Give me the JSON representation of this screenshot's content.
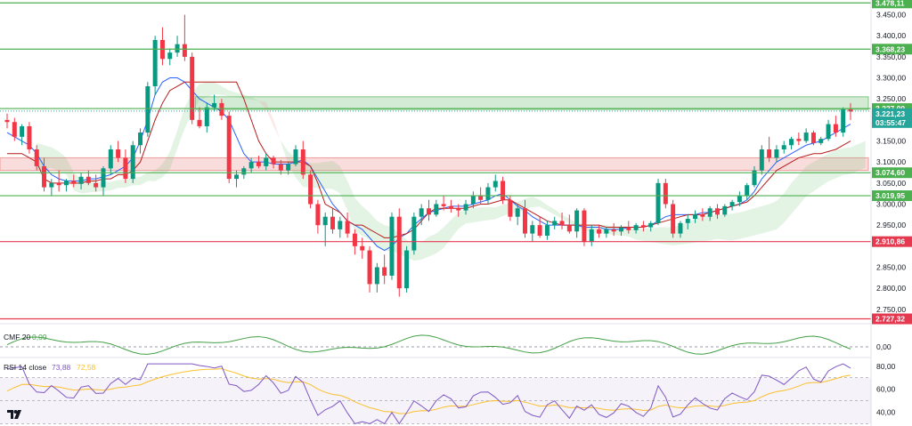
{
  "chart_data": {
    "type": "candlestick",
    "instrument": "ETH",
    "price_axis": {
      "ticks": [
        "3.450,00",
        "3.400,00",
        "3.350,00",
        "3.300,00",
        "3.250,00",
        "3.150,00",
        "3.100,00",
        "3.050,00",
        "3.000,00",
        "2.950,00",
        "2.850,00",
        "2.800,00",
        "2.750,00"
      ],
      "tick_values": [
        3450,
        3400,
        3350,
        3300,
        3250,
        3150,
        3100,
        3050,
        3000,
        2950,
        2850,
        2800,
        2750
      ],
      "range": [
        2720,
        3485
      ]
    },
    "levels": [
      {
        "label": "3.478,11",
        "value": 3478.11,
        "color": "#4caf50"
      },
      {
        "label": "3.368,23",
        "value": 3368.23,
        "color": "#4caf50"
      },
      {
        "label": "3.227,00",
        "value": 3227.0,
        "color": "#4caf50"
      },
      {
        "label": "3.074,60",
        "value": 3074.6,
        "color": "#4caf50"
      },
      {
        "label": "3.019,95",
        "value": 3019.95,
        "color": "#4caf50"
      },
      {
        "label": "2.910,86",
        "value": 2910.86,
        "color": "#e53950"
      },
      {
        "label": "2.727,32",
        "value": 2727.32,
        "color": "#e53950"
      }
    ],
    "current_price": {
      "label": "3.221,23",
      "countdown": "03:55:47",
      "value": 3221.23,
      "color": "#26a69a"
    },
    "zones": [
      {
        "from": 3225,
        "to": 3255,
        "color": "#81c784",
        "start_fraction": 0.225
      },
      {
        "from": 3080,
        "to": 3110,
        "color": "#ef9a9a",
        "start_fraction": 0
      }
    ],
    "candles": [
      [
        3200,
        3215,
        3180,
        3195
      ],
      [
        3195,
        3205,
        3150,
        3160
      ],
      [
        3160,
        3190,
        3140,
        3185
      ],
      [
        3185,
        3195,
        3120,
        3130
      ],
      [
        3130,
        3140,
        3080,
        3090
      ],
      [
        3090,
        3110,
        3030,
        3040
      ],
      [
        3040,
        3060,
        3020,
        3050
      ],
      [
        3050,
        3080,
        3030,
        3045
      ],
      [
        3045,
        3060,
        3030,
        3055
      ],
      [
        3055,
        3070,
        3040,
        3048
      ],
      [
        3048,
        3075,
        3035,
        3065
      ],
      [
        3065,
        3080,
        3045,
        3050
      ],
      [
        3050,
        3070,
        3030,
        3040
      ],
      [
        3040,
        3090,
        3020,
        3085
      ],
      [
        3085,
        3140,
        3070,
        3130
      ],
      [
        3130,
        3150,
        3100,
        3110
      ],
      [
        3110,
        3130,
        3050,
        3060
      ],
      [
        3060,
        3150,
        3050,
        3140
      ],
      [
        3140,
        3180,
        3120,
        3170
      ],
      [
        3170,
        3290,
        3160,
        3280
      ],
      [
        3280,
        3400,
        3260,
        3390
      ],
      [
        3390,
        3420,
        3330,
        3345
      ],
      [
        3345,
        3370,
        3330,
        3360
      ],
      [
        3360,
        3400,
        3350,
        3380
      ],
      [
        3380,
        3450,
        3340,
        3350
      ],
      [
        3350,
        3360,
        3190,
        3200
      ],
      [
        3200,
        3230,
        3180,
        3185
      ],
      [
        3185,
        3240,
        3170,
        3230
      ],
      [
        3230,
        3260,
        3220,
        3240
      ],
      [
        3240,
        3250,
        3200,
        3210
      ],
      [
        3210,
        3220,
        3050,
        3060
      ],
      [
        3060,
        3080,
        3040,
        3070
      ],
      [
        3070,
        3090,
        3060,
        3085
      ],
      [
        3085,
        3110,
        3075,
        3100
      ],
      [
        3100,
        3115,
        3085,
        3090
      ],
      [
        3090,
        3120,
        3080,
        3110
      ],
      [
        3110,
        3115,
        3085,
        3095
      ],
      [
        3095,
        3105,
        3070,
        3080
      ],
      [
        3080,
        3100,
        3070,
        3095
      ],
      [
        3095,
        3140,
        3090,
        3130
      ],
      [
        3130,
        3150,
        3060,
        3070
      ],
      [
        3070,
        3080,
        2990,
        3000
      ],
      [
        3000,
        3010,
        2930,
        2950
      ],
      [
        2950,
        2980,
        2900,
        2970
      ],
      [
        2970,
        2990,
        2930,
        2940
      ],
      [
        2940,
        2970,
        2920,
        2960
      ],
      [
        2960,
        2980,
        2920,
        2930
      ],
      [
        2930,
        2940,
        2880,
        2900
      ],
      [
        2900,
        2920,
        2870,
        2890
      ],
      [
        2890,
        2900,
        2790,
        2810
      ],
      [
        2810,
        2860,
        2790,
        2850
      ],
      [
        2850,
        2880,
        2810,
        2830
      ],
      [
        2830,
        2980,
        2820,
        2970
      ],
      [
        2970,
        2990,
        2780,
        2800
      ],
      [
        2800,
        2900,
        2790,
        2890
      ],
      [
        2890,
        2980,
        2880,
        2970
      ],
      [
        2970,
        3000,
        2950,
        2990
      ],
      [
        2990,
        3010,
        2960,
        2975
      ],
      [
        2975,
        3010,
        2970,
        3000
      ],
      [
        3000,
        3020,
        2985,
        2995
      ],
      [
        2995,
        3010,
        2980,
        2990
      ],
      [
        2990,
        3000,
        2970,
        2985
      ],
      [
        2985,
        3010,
        2975,
        3000
      ],
      [
        3000,
        3030,
        2990,
        3020
      ],
      [
        3020,
        3040,
        3000,
        3010
      ],
      [
        3010,
        3050,
        3000,
        3040
      ],
      [
        3040,
        3070,
        3030,
        3055
      ],
      [
        3055,
        3065,
        3000,
        3010
      ],
      [
        3010,
        3020,
        2960,
        2970
      ],
      [
        2970,
        3000,
        2950,
        2990
      ],
      [
        2990,
        3010,
        2920,
        2930
      ],
      [
        2930,
        2960,
        2910,
        2950
      ],
      [
        2950,
        2970,
        2920,
        2925
      ],
      [
        2925,
        2960,
        2915,
        2950
      ],
      [
        2950,
        2970,
        2940,
        2960
      ],
      [
        2960,
        2980,
        2940,
        2950
      ],
      [
        2950,
        2975,
        2930,
        2935
      ],
      [
        2935,
        2990,
        2920,
        2985
      ],
      [
        2985,
        2990,
        2900,
        2910
      ],
      [
        2910,
        2950,
        2900,
        2940
      ],
      [
        2940,
        2950,
        2920,
        2930
      ],
      [
        2930,
        2945,
        2920,
        2940
      ],
      [
        2940,
        2955,
        2925,
        2935
      ],
      [
        2935,
        2950,
        2925,
        2945
      ],
      [
        2945,
        2960,
        2930,
        2938
      ],
      [
        2938,
        2955,
        2930,
        2950
      ],
      [
        2950,
        2960,
        2935,
        2945
      ],
      [
        2945,
        2960,
        2935,
        2955
      ],
      [
        2955,
        3060,
        2950,
        3050
      ],
      [
        3050,
        3060,
        2990,
        3000
      ],
      [
        3000,
        3010,
        2920,
        2930
      ],
      [
        2930,
        2960,
        2920,
        2955
      ],
      [
        2955,
        2975,
        2940,
        2965
      ],
      [
        2965,
        2985,
        2955,
        2975
      ],
      [
        2975,
        2990,
        2960,
        2970
      ],
      [
        2970,
        2995,
        2960,
        2990
      ],
      [
        2990,
        3000,
        2965,
        2975
      ],
      [
        2975,
        3000,
        2970,
        2995
      ],
      [
        2995,
        3010,
        2985,
        3005
      ],
      [
        3005,
        3030,
        2995,
        3020
      ],
      [
        3020,
        3050,
        3010,
        3045
      ],
      [
        3045,
        3090,
        3040,
        3080
      ],
      [
        3080,
        3140,
        3070,
        3130
      ],
      [
        3130,
        3160,
        3100,
        3110
      ],
      [
        3110,
        3140,
        3100,
        3130
      ],
      [
        3130,
        3150,
        3120,
        3140
      ],
      [
        3140,
        3160,
        3130,
        3155
      ],
      [
        3155,
        3170,
        3140,
        3150
      ],
      [
        3150,
        3180,
        3145,
        3170
      ],
      [
        3170,
        3175,
        3140,
        3145
      ],
      [
        3145,
        3160,
        3140,
        3155
      ],
      [
        3155,
        3200,
        3150,
        3190
      ],
      [
        3190,
        3210,
        3160,
        3170
      ],
      [
        3170,
        3230,
        3160,
        3225
      ],
      [
        3225,
        3240,
        3200,
        3220
      ]
    ],
    "tenkan": [
      3170,
      3160,
      3150,
      3140,
      3120,
      3090,
      3070,
      3060,
      3055,
      3055,
      3055,
      3060,
      3060,
      3065,
      3070,
      3080,
      3090,
      3110,
      3150,
      3200,
      3260,
      3290,
      3300,
      3300,
      3290,
      3270,
      3250,
      3240,
      3230,
      3220,
      3200,
      3160,
      3120,
      3100,
      3100,
      3100,
      3095,
      3095,
      3095,
      3100,
      3105,
      3090,
      3060,
      3030,
      3000,
      2980,
      2960,
      2950,
      2940,
      2920,
      2900,
      2890,
      2900,
      2920,
      2930,
      2950,
      2965,
      2980,
      2985,
      2990,
      2995,
      2995,
      2995,
      3000,
      3005,
      3010,
      3020,
      3025,
      3010,
      2995,
      2985,
      2970,
      2960,
      2950,
      2950,
      2950,
      2950,
      2950,
      2945,
      2945,
      2945,
      2940,
      2940,
      2940,
      2945,
      2945,
      2945,
      2950,
      2960,
      2970,
      2975,
      2975,
      2975,
      2975,
      2980,
      2980,
      2985,
      2990,
      2995,
      3000,
      3010,
      3030,
      3060,
      3080,
      3100,
      3110,
      3120,
      3130,
      3140,
      3145,
      3150,
      3160,
      3170,
      3180,
      3190
    ],
    "kijun": [
      3120,
      3120,
      3120,
      3110,
      3100,
      3060,
      3050,
      3050,
      3050,
      3050,
      3050,
      3055,
      3055,
      3060,
      3060,
      3070,
      3070,
      3080,
      3100,
      3150,
      3200,
      3240,
      3270,
      3280,
      3290,
      3290,
      3290,
      3290,
      3290,
      3290,
      3290,
      3290,
      3250,
      3200,
      3150,
      3120,
      3100,
      3100,
      3100,
      3100,
      3100,
      3090,
      3050,
      3000,
      2990,
      2980,
      2960,
      2950,
      2950,
      2940,
      2930,
      2920,
      2920,
      2925,
      2930,
      2940,
      2960,
      2980,
      2990,
      2990,
      2990,
      2990,
      2990,
      2995,
      3000,
      3000,
      3005,
      3010,
      3010,
      3000,
      2990,
      2980,
      2970,
      2960,
      2955,
      2950,
      2950,
      2950,
      2950,
      2950,
      2950,
      2945,
      2945,
      2945,
      2945,
      2945,
      2945,
      2950,
      2955,
      2960,
      2965,
      2970,
      2975,
      2975,
      2975,
      2980,
      2985,
      2990,
      2995,
      3000,
      3005,
      3020,
      3040,
      3060,
      3080,
      3090,
      3100,
      3110,
      3115,
      3120,
      3120,
      3125,
      3130,
      3140,
      3150
    ],
    "cmf": {
      "title": "CMF 20",
      "value_label": "0,09",
      "color": "#43a047",
      "axis_label": "0,00"
    },
    "rsi": {
      "title": "RSI 14 close",
      "value_label": "73,88",
      "ma_label": "72,58",
      "line_color": "#7e57c2",
      "ma_color": "#fbc02d",
      "ticks": [
        "80,00",
        "60,00",
        "40,00"
      ],
      "tick_values": [
        80,
        60,
        40
      ],
      "band": [
        30,
        70
      ]
    }
  }
}
